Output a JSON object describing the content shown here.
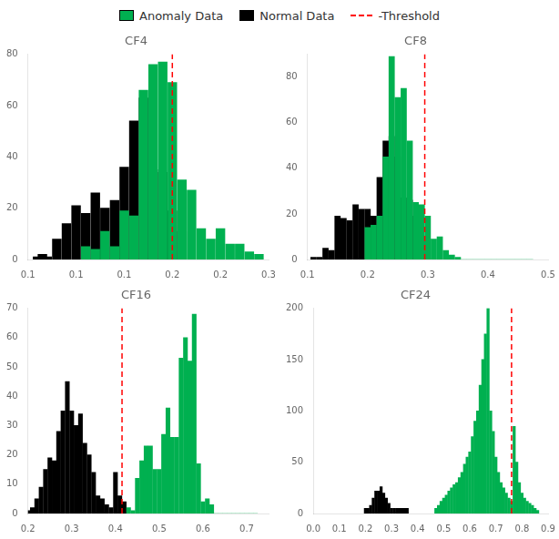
{
  "chart_data": [
    {
      "type": "bar",
      "title": "CF4",
      "grid": false,
      "legend": "top",
      "bin_width": 0.01,
      "xlim": [
        0.05,
        0.3
      ],
      "xticks": [
        {
          "value": 0.05,
          "label": "0.1"
        },
        {
          "value": 0.1,
          "label": "0.1"
        },
        {
          "value": 0.15,
          "label": "0.1"
        },
        {
          "value": 0.2,
          "label": "0.2"
        },
        {
          "value": 0.25,
          "label": "0.2"
        },
        {
          "value": 0.3,
          "label": "0.3"
        }
      ],
      "ylim": [
        0,
        80
      ],
      "yticks": [
        0,
        20,
        40,
        60,
        80
      ],
      "series": [
        {
          "name": "Anomaly Data",
          "type": "bar",
          "color": "#00b050",
          "x": [
            0.11,
            0.12,
            0.13,
            0.14,
            0.15,
            0.16,
            0.17,
            0.18,
            0.19,
            0.2,
            0.21,
            0.22,
            0.23,
            0.24,
            0.25,
            0.26,
            0.27,
            0.28,
            0.29
          ],
          "values": [
            5,
            4,
            11,
            5,
            19,
            17,
            66,
            76,
            77,
            69,
            31,
            27,
            12,
            8,
            12,
            6,
            6,
            3,
            2
          ]
        },
        {
          "name": "Normal Data",
          "type": "bar",
          "color": "#000000",
          "x": [
            0.06,
            0.065,
            0.07,
            0.08,
            0.09,
            0.1,
            0.11,
            0.12,
            0.13,
            0.14,
            0.15,
            0.16,
            0.17,
            0.18,
            0.19,
            0.2,
            0.21
          ],
          "values": [
            1,
            2,
            1,
            8,
            14,
            21,
            18,
            26,
            20,
            23,
            36,
            54,
            63,
            35,
            34,
            19,
            11
          ]
        },
        {
          "name": "-Threshold",
          "type": "line",
          "line_style": "dashed",
          "color": "red",
          "x": [
            0.2
          ]
        }
      ]
    },
    {
      "type": "bar",
      "title": "CF8",
      "grid": false,
      "legend": "top",
      "bin_width": 0.01,
      "xlim": [
        0.1,
        0.5
      ],
      "xticks": [
        0.1,
        0.2,
        0.3,
        0.4,
        0.5
      ],
      "ylim": [
        0,
        90
      ],
      "yticks": [
        0,
        20,
        40,
        60,
        80
      ],
      "series": [
        {
          "name": "Anomaly Data",
          "type": "bar",
          "color": "#00b050",
          "x": [
            0.2,
            0.21,
            0.22,
            0.23,
            0.24,
            0.25,
            0.26,
            0.27,
            0.28,
            0.29,
            0.3,
            0.31,
            0.32,
            0.33,
            0.34,
            0.35,
            0.36,
            0.37,
            0.38,
            0.39,
            0.4,
            0.41,
            0.42,
            0.43,
            0.44,
            0.45,
            0.46,
            0.47
          ],
          "values": [
            14,
            15,
            19,
            45,
            89,
            71,
            75,
            52,
            25,
            24,
            19,
            9,
            10,
            4,
            2,
            1,
            0,
            0,
            0,
            0,
            0,
            0,
            0,
            0,
            0,
            0,
            0,
            0
          ]
        },
        {
          "name": "Normal Data",
          "type": "bar",
          "color": "#000000",
          "x": [
            0.11,
            0.12,
            0.13,
            0.14,
            0.15,
            0.16,
            0.17,
            0.18,
            0.19,
            0.2,
            0.21,
            0.22,
            0.23,
            0.24,
            0.25,
            0.26,
            0.27,
            0.28,
            0.29
          ],
          "values": [
            1,
            1,
            5,
            4,
            19,
            18,
            17,
            24,
            22,
            22,
            19,
            36,
            52,
            54,
            45,
            27,
            26,
            19,
            8
          ]
        },
        {
          "name": "-Threshold",
          "type": "line",
          "line_style": "dashed",
          "color": "red",
          "x": [
            0.295
          ]
        }
      ]
    },
    {
      "type": "bar",
      "title": "CF16",
      "grid": false,
      "legend": "top",
      "bin_width": 0.01,
      "xlim": [
        0.2,
        0.75
      ],
      "xticks": [
        0.2,
        0.3,
        0.4,
        0.5,
        0.6,
        0.7
      ],
      "ylim": [
        0,
        70
      ],
      "yticks": [
        0,
        10,
        20,
        30,
        40,
        50,
        60,
        70
      ],
      "series": [
        {
          "name": "Anomaly Data",
          "type": "bar",
          "color": "#00b050",
          "x": [
            0.43,
            0.44,
            0.45,
            0.46,
            0.47,
            0.48,
            0.49,
            0.5,
            0.51,
            0.52,
            0.53,
            0.54,
            0.55,
            0.56,
            0.57,
            0.58,
            0.59,
            0.6,
            0.61,
            0.62,
            0.63,
            0.64,
            0.65,
            0.66,
            0.67,
            0.68,
            0.69,
            0.7,
            0.71,
            0.72
          ],
          "values": [
            2,
            1,
            12,
            18,
            23,
            23,
            15,
            15,
            27,
            36,
            26,
            26,
            53,
            60,
            52,
            68,
            17,
            4,
            5,
            3,
            0,
            0,
            0,
            0,
            0,
            0,
            0,
            0,
            0,
            0
          ]
        },
        {
          "name": "Normal Data",
          "type": "bar",
          "color": "#000000",
          "x": [
            0.2,
            0.21,
            0.22,
            0.23,
            0.24,
            0.25,
            0.26,
            0.27,
            0.28,
            0.29,
            0.3,
            0.31,
            0.32,
            0.33,
            0.34,
            0.35,
            0.36,
            0.37,
            0.38,
            0.39,
            0.4,
            0.41,
            0.42
          ],
          "values": [
            1,
            2,
            5,
            9,
            15,
            19,
            18,
            28,
            35,
            45,
            35,
            30,
            34,
            24,
            20,
            14,
            6,
            5,
            3,
            2,
            14,
            6,
            4
          ]
        },
        {
          "name": "-Threshold",
          "type": "line",
          "line_style": "dashed",
          "color": "red",
          "x": [
            0.415
          ]
        }
      ]
    },
    {
      "type": "bar",
      "title": "CF24",
      "grid": false,
      "legend": "top",
      "bin_width": 0.01,
      "xlim": [
        0.0,
        0.9
      ],
      "xticks": [
        {
          "value": 0.0,
          "label": "0.0"
        },
        0.1,
        0.2,
        0.3,
        0.4,
        0.5,
        0.6,
        0.7,
        0.8,
        0.9
      ],
      "ylim": [
        0,
        200
      ],
      "yticks": [
        0,
        50,
        100,
        150,
        200
      ],
      "series": [
        {
          "name": "Anomaly Data",
          "type": "bar",
          "color": "#00b050",
          "x": [
            0.47,
            0.48,
            0.49,
            0.5,
            0.51,
            0.52,
            0.53,
            0.54,
            0.55,
            0.56,
            0.57,
            0.58,
            0.59,
            0.6,
            0.61,
            0.62,
            0.63,
            0.64,
            0.65,
            0.66,
            0.67,
            0.68,
            0.69,
            0.7,
            0.71,
            0.72,
            0.73,
            0.74,
            0.75,
            0.76,
            0.77,
            0.78,
            0.79,
            0.8,
            0.81,
            0.82,
            0.83,
            0.84,
            0.85,
            0.86
          ],
          "values": [
            5,
            8,
            12,
            15,
            18,
            22,
            25,
            28,
            30,
            35,
            40,
            48,
            55,
            60,
            75,
            90,
            100,
            125,
            150,
            175,
            200,
            100,
            80,
            55,
            40,
            30,
            25,
            20,
            15,
            12,
            85,
            50,
            30,
            20,
            15,
            12,
            10,
            8,
            5,
            3
          ]
        },
        {
          "name": "Normal Data",
          "type": "bar",
          "color": "#000000",
          "x": [
            0.2,
            0.21,
            0.22,
            0.23,
            0.24,
            0.25,
            0.26,
            0.27,
            0.28,
            0.29,
            0.3,
            0.31,
            0.32,
            0.33,
            0.34,
            0.35,
            0.36
          ],
          "values": [
            5,
            5,
            8,
            15,
            22,
            22,
            26,
            20,
            15,
            10,
            5,
            5,
            5,
            5,
            5,
            5,
            5
          ]
        },
        {
          "name": "-Threshold",
          "type": "line",
          "line_style": "dashed",
          "color": "red",
          "x": [
            0.76
          ]
        }
      ]
    }
  ]
}
